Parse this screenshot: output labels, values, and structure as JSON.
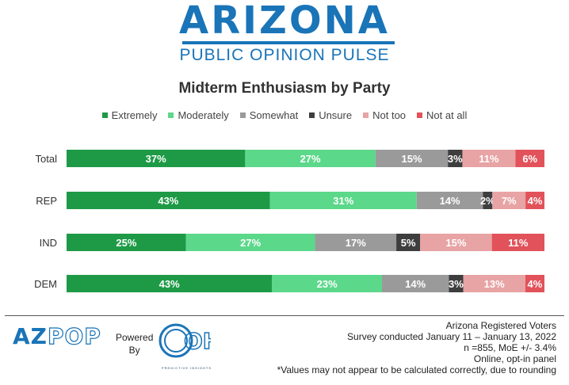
{
  "header": {
    "logo_main": "ARIZONA",
    "logo_sub": "PUBLIC OPINION PULSE"
  },
  "colors": {
    "brand": "#1a74b8",
    "extremely": "#1e9a46",
    "moderately": "#5cd88a",
    "somewhat": "#9a9a9a",
    "unsure": "#3e3e3e",
    "not_too": "#e8a3a4",
    "not_at_all": "#e2525a"
  },
  "chart_data": {
    "type": "bar",
    "orientation": "horizontal",
    "stacked": true,
    "title": "Midterm Enthusiasm by Party",
    "categories": [
      "Total",
      "REP",
      "IND",
      "DEM"
    ],
    "series": [
      {
        "name": "Extremely",
        "values": [
          37,
          43,
          25,
          43
        ]
      },
      {
        "name": "Moderately",
        "values": [
          27,
          31,
          27,
          23
        ]
      },
      {
        "name": "Somewhat",
        "values": [
          15,
          14,
          17,
          14
        ]
      },
      {
        "name": "Unsure",
        "values": [
          3,
          2,
          5,
          3
        ]
      },
      {
        "name": "Not too",
        "values": [
          11,
          7,
          15,
          13
        ]
      },
      {
        "name": "Not at all",
        "values": [
          6,
          4,
          11,
          4
        ]
      }
    ],
    "value_suffix": "%",
    "xlim": [
      0,
      100
    ],
    "grid": false,
    "legend_position": "top"
  },
  "footer": {
    "azpop_logo_az": "AZ",
    "azpop_logo_pop": "POP",
    "powered_by_line1": "Powered",
    "powered_by_line2": "By",
    "oh_logo_text": "OH",
    "oh_caption": "PREDICTIVE INSIGHTS",
    "notes": [
      "Arizona Registered Voters",
      "Survey conducted January 11 – January 13, 2022",
      "n =855, MoE +/- 3.4%",
      "Online, opt-in panel",
      "*Values may not appear to be calculated correctly, due to rounding"
    ]
  }
}
